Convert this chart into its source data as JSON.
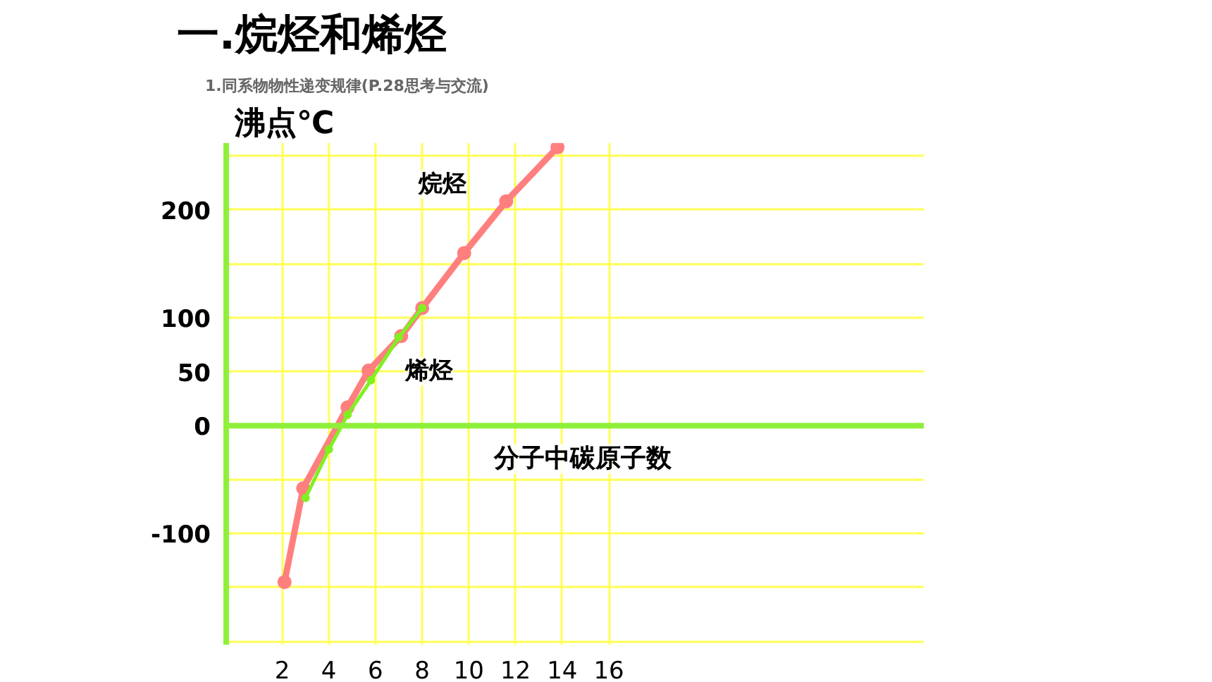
{
  "chart_data": {
    "type": "line",
    "title": "一.烷烃和烯烃",
    "subtitle": "1.同系物物性递变规律(P.28思考与交流)",
    "xlabel": "分子中碳原子数",
    "ylabel": "沸点℃",
    "xlim": [
      -0.4,
      29.5
    ],
    "xticks": [
      2,
      4,
      6,
      8,
      10,
      12,
      14,
      16
    ],
    "ylim": [
      -203,
      262
    ],
    "yticks": [
      {
        "value": -200,
        "label": null
      },
      {
        "value": -150,
        "label": null
      },
      -100,
      {
        "value": -50,
        "label": null
      },
      0,
      50,
      100,
      {
        "value": 150,
        "label": null
      },
      200,
      {
        "value": 250,
        "label": null
      }
    ],
    "grid": true,
    "ref_lines": [
      {
        "axis": "y",
        "value": 0,
        "color": "#8ef03a"
      }
    ],
    "marker": "circle",
    "line_style": "solid",
    "series": [
      {
        "name": "烷烃",
        "color": "#ff7f7f",
        "x": [
          2.1,
          2.9,
          4.8,
          5.7,
          7.1,
          8.0,
          9.8,
          11.6,
          13.8
        ],
        "values": [
          -145,
          -58,
          17,
          51,
          83,
          109,
          160,
          208,
          258
        ]
      },
      {
        "name": "烯烃",
        "color": "#80f020",
        "x": [
          3.0,
          4.0,
          4.8,
          5.8,
          7.0,
          8.0
        ],
        "values": [
          -67,
          -22,
          10,
          42,
          82,
          109
        ]
      }
    ]
  }
}
